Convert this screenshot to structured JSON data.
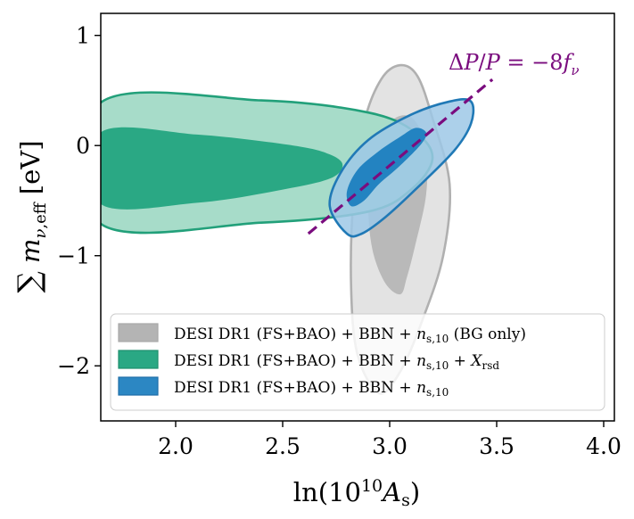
{
  "chart_data": {
    "type": "contour",
    "xlabel": "ln(10¹⁰A_s)",
    "ylabel": "∑ m_ν,eff [eV]",
    "xlim": [
      1.65,
      4.05
    ],
    "ylim": [
      -2.5,
      1.2
    ],
    "xticks": [
      2.0,
      2.5,
      3.0,
      3.5,
      4.0
    ],
    "xtick_labels": [
      "2.0",
      "2.5",
      "3.0",
      "3.5",
      "4.0"
    ],
    "yticks": [
      -2,
      -1,
      0,
      1
    ],
    "ytick_labels": [
      "−2",
      "−1",
      "0",
      "1"
    ],
    "grid": false,
    "legend_position": "lower-right",
    "series": [
      {
        "name": "DESI DR1 (FS+BAO) + BBN + n_s,10 (BG only)",
        "color": "#b4b4b4",
        "inner": [
          [
            3.05,
            -1.35
          ],
          [
            2.98,
            -1.25
          ],
          [
            2.92,
            -0.95
          ],
          [
            2.9,
            -0.55
          ],
          [
            2.92,
            -0.15
          ],
          [
            2.98,
            0.15
          ],
          [
            3.05,
            0.27
          ],
          [
            3.12,
            0.22
          ],
          [
            3.17,
            -0.05
          ],
          [
            3.17,
            -0.45
          ],
          [
            3.12,
            -0.9
          ],
          [
            3.08,
            -1.2
          ]
        ],
        "outer": [
          [
            2.95,
            -2.25
          ],
          [
            2.85,
            -1.9
          ],
          [
            2.82,
            -1.3
          ],
          [
            2.83,
            -0.5
          ],
          [
            2.88,
            0.2
          ],
          [
            2.96,
            0.6
          ],
          [
            3.05,
            0.73
          ],
          [
            3.13,
            0.63
          ],
          [
            3.2,
            0.25
          ],
          [
            3.28,
            -0.35
          ],
          [
            3.25,
            -1.0
          ],
          [
            3.15,
            -1.6
          ],
          [
            3.05,
            -2.05
          ]
        ]
      },
      {
        "name": "DESI DR1 (FS+BAO) + BBN + n_s,10 + X_rsd",
        "color": "#2aa884",
        "inner": [
          [
            1.65,
            0.12
          ],
          [
            2.1,
            0.1
          ],
          [
            2.55,
            0.0
          ],
          [
            2.72,
            -0.08
          ],
          [
            2.78,
            -0.18
          ],
          [
            2.72,
            -0.3
          ],
          [
            2.5,
            -0.4
          ],
          [
            2.1,
            -0.52
          ],
          [
            1.65,
            -0.53
          ]
        ],
        "outer": [
          [
            1.65,
            0.39
          ],
          [
            2.4,
            0.41
          ],
          [
            2.9,
            0.3
          ],
          [
            3.12,
            0.12
          ],
          [
            3.2,
            -0.12
          ],
          [
            3.1,
            -0.4
          ],
          [
            2.9,
            -0.6
          ],
          [
            2.4,
            -0.7
          ],
          [
            1.65,
            -0.71
          ]
        ]
      },
      {
        "name": "DESI DR1 (FS+BAO) + BBN + n_s,10",
        "color": "#2c87c3",
        "inner": [
          [
            2.82,
            -0.55
          ],
          [
            2.88,
            -0.5
          ],
          [
            2.95,
            -0.35
          ],
          [
            3.05,
            -0.18
          ],
          [
            3.15,
            0.02
          ],
          [
            3.17,
            0.12
          ],
          [
            3.12,
            0.16
          ],
          [
            3.05,
            0.08
          ],
          [
            2.95,
            -0.05
          ],
          [
            2.85,
            -0.22
          ],
          [
            2.8,
            -0.42
          ]
        ],
        "outer": [
          [
            2.8,
            -0.8
          ],
          [
            2.87,
            -0.8
          ],
          [
            2.98,
            -0.65
          ],
          [
            3.12,
            -0.4
          ],
          [
            3.3,
            -0.05
          ],
          [
            3.38,
            0.2
          ],
          [
            3.38,
            0.4
          ],
          [
            3.28,
            0.4
          ],
          [
            3.1,
            0.28
          ],
          [
            2.9,
            0.05
          ],
          [
            2.77,
            -0.25
          ],
          [
            2.72,
            -0.55
          ]
        ]
      }
    ],
    "lines": [
      {
        "label": "ΔP/P = −8f_ν",
        "style": "dashed",
        "color": "#7a0c7e",
        "x": [
          2.62,
          3.48
        ],
        "y": [
          -0.8,
          0.6
        ]
      }
    ],
    "legend": [
      {
        "label": "DESI DR1 (FS+BAO) + BBN + n_s,10 (BG only)",
        "color": "#b4b4b4",
        "edge": "#a8a8a8"
      },
      {
        "label": "DESI DR1 (FS+BAO) + BBN + n_s,10 + X_rsd",
        "color": "#2aa884",
        "edge": "#1f8f6e"
      },
      {
        "label": "DESI DR1 (FS+BAO) + BBN + n_s,10",
        "color": "#2c87c3",
        "edge": "#1f6fa8"
      }
    ]
  }
}
